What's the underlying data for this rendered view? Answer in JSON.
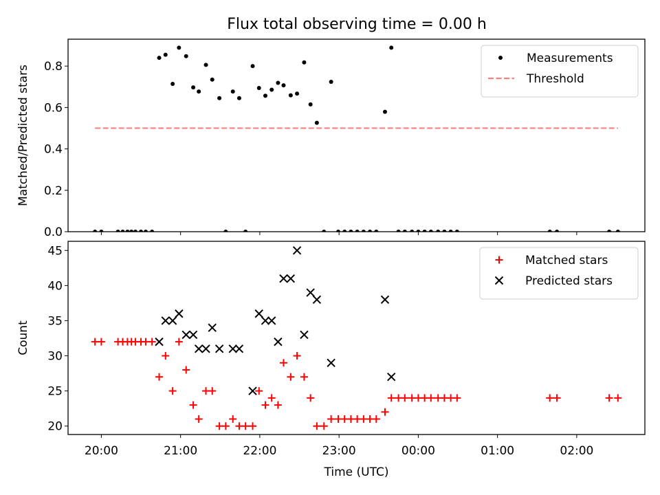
{
  "figure": {
    "title": "Flux total observing time = 0.00 h"
  },
  "chart_data": [
    {
      "type": "scatter",
      "ylabel": "Matched/Predicted stars",
      "xlabel": "",
      "ylim": [
        0.0,
        0.93
      ],
      "yticks": [
        0.0,
        0.2,
        0.4,
        0.6,
        0.8
      ],
      "ytick_labels": [
        "0.0",
        "0.2",
        "0.4",
        "0.6",
        "0.8"
      ],
      "xticks_hours": [
        20,
        21,
        22,
        23,
        24,
        25,
        26
      ],
      "xtick_labels": [
        "20:00",
        "21:00",
        "22:00",
        "23:00",
        "00:00",
        "01:00",
        "02:00"
      ],
      "xlim_hours": [
        19.58,
        26.86
      ],
      "legend_position": "top-right",
      "series": [
        {
          "name": "Measurements",
          "kind": "dots",
          "color": "#000000",
          "x": [
            19.92,
            20.0,
            20.21,
            20.27,
            20.33,
            20.38,
            20.43,
            20.5,
            20.56,
            20.64,
            20.73,
            20.81,
            20.9,
            20.98,
            21.07,
            21.16,
            21.23,
            21.32,
            21.4,
            21.49,
            21.57,
            21.66,
            21.74,
            21.82,
            21.91,
            21.99,
            22.07,
            22.15,
            22.23,
            22.3,
            22.39,
            22.47,
            22.56,
            22.64,
            22.72,
            22.81,
            22.9,
            22.99,
            23.07,
            23.15,
            23.23,
            23.31,
            23.39,
            23.47,
            23.58,
            23.66,
            23.75,
            23.83,
            23.92,
            24.0,
            24.08,
            24.16,
            24.25,
            24.33,
            24.41,
            24.49,
            25.66,
            25.75,
            26.41,
            26.52
          ],
          "y": [
            0.0,
            0.0,
            0.0,
            0.0,
            0.0,
            0.0,
            0.0,
            0.0,
            0.0,
            0.0,
            0.84,
            0.855,
            0.714,
            0.889,
            0.848,
            0.697,
            0.677,
            0.806,
            0.735,
            0.645,
            0.0,
            0.677,
            0.645,
            0.0,
            0.8,
            0.694,
            0.657,
            0.686,
            0.719,
            0.707,
            0.659,
            0.667,
            0.818,
            0.615,
            0.526,
            0.0,
            0.724,
            0.0,
            0.0,
            0.0,
            0.0,
            0.0,
            0.0,
            0.0,
            0.579,
            0.889,
            0.0,
            0.0,
            0.0,
            0.0,
            0.0,
            0.0,
            0.0,
            0.0,
            0.0,
            0.0,
            0.0,
            0.0,
            0.0,
            0.0
          ]
        },
        {
          "name": "Threshold",
          "kind": "dashed-line",
          "color": "#ff7f7f",
          "x": [
            19.92,
            26.52
          ],
          "y": [
            0.5,
            0.5
          ]
        }
      ]
    },
    {
      "type": "scatter",
      "ylabel": "Count",
      "xlabel": "Time (UTC)",
      "ylim": [
        18.8,
        46.3
      ],
      "yticks": [
        20,
        25,
        30,
        35,
        40,
        45
      ],
      "ytick_labels": [
        "20",
        "25",
        "30",
        "35",
        "40",
        "45"
      ],
      "xticks_hours": [
        20,
        21,
        22,
        23,
        24,
        25,
        26
      ],
      "xtick_labels": [
        "20:00",
        "21:00",
        "22:00",
        "23:00",
        "00:00",
        "01:00",
        "02:00"
      ],
      "xlim_hours": [
        19.58,
        26.86
      ],
      "legend_position": "top-right",
      "series": [
        {
          "name": "Matched stars",
          "kind": "plus",
          "color": "#ff0000",
          "x": [
            19.92,
            20.0,
            20.21,
            20.27,
            20.33,
            20.38,
            20.43,
            20.5,
            20.56,
            20.64,
            20.73,
            20.81,
            20.9,
            20.98,
            21.07,
            21.16,
            21.23,
            21.32,
            21.4,
            21.49,
            21.57,
            21.66,
            21.74,
            21.82,
            21.91,
            21.99,
            22.07,
            22.15,
            22.23,
            22.3,
            22.39,
            22.47,
            22.56,
            22.64,
            22.72,
            22.81,
            22.9,
            22.99,
            23.07,
            23.15,
            23.23,
            23.31,
            23.39,
            23.47,
            23.58,
            23.66,
            23.75,
            23.83,
            23.92,
            24.0,
            24.08,
            24.16,
            24.25,
            24.33,
            24.41,
            24.49,
            25.66,
            25.75,
            26.41,
            26.52
          ],
          "y": [
            32,
            32,
            32,
            32,
            32,
            32,
            32,
            32,
            32,
            32,
            27,
            30,
            25,
            32,
            28,
            23,
            21,
            25,
            25,
            20,
            20,
            21,
            20,
            20,
            20,
            25,
            23,
            24,
            23,
            29,
            27,
            30,
            27,
            24,
            20,
            20,
            21,
            21,
            21,
            21,
            21,
            21,
            21,
            21,
            22,
            24,
            24,
            24,
            24,
            24,
            24,
            24,
            24,
            24,
            24,
            24,
            24,
            24,
            24,
            24
          ]
        },
        {
          "name": "Predicted stars",
          "kind": "x",
          "color": "#000000",
          "x": [
            20.73,
            20.81,
            20.9,
            20.98,
            21.07,
            21.16,
            21.23,
            21.32,
            21.4,
            21.49,
            21.66,
            21.74,
            21.91,
            21.99,
            22.07,
            22.15,
            22.23,
            22.3,
            22.39,
            22.47,
            22.56,
            22.64,
            22.72,
            22.9,
            23.58,
            23.66
          ],
          "y": [
            32,
            35,
            35,
            36,
            33,
            33,
            31,
            31,
            34,
            31,
            31,
            31,
            25,
            36,
            35,
            35,
            32,
            41,
            41,
            45,
            33,
            39,
            38,
            29,
            38,
            27
          ]
        }
      ]
    }
  ]
}
